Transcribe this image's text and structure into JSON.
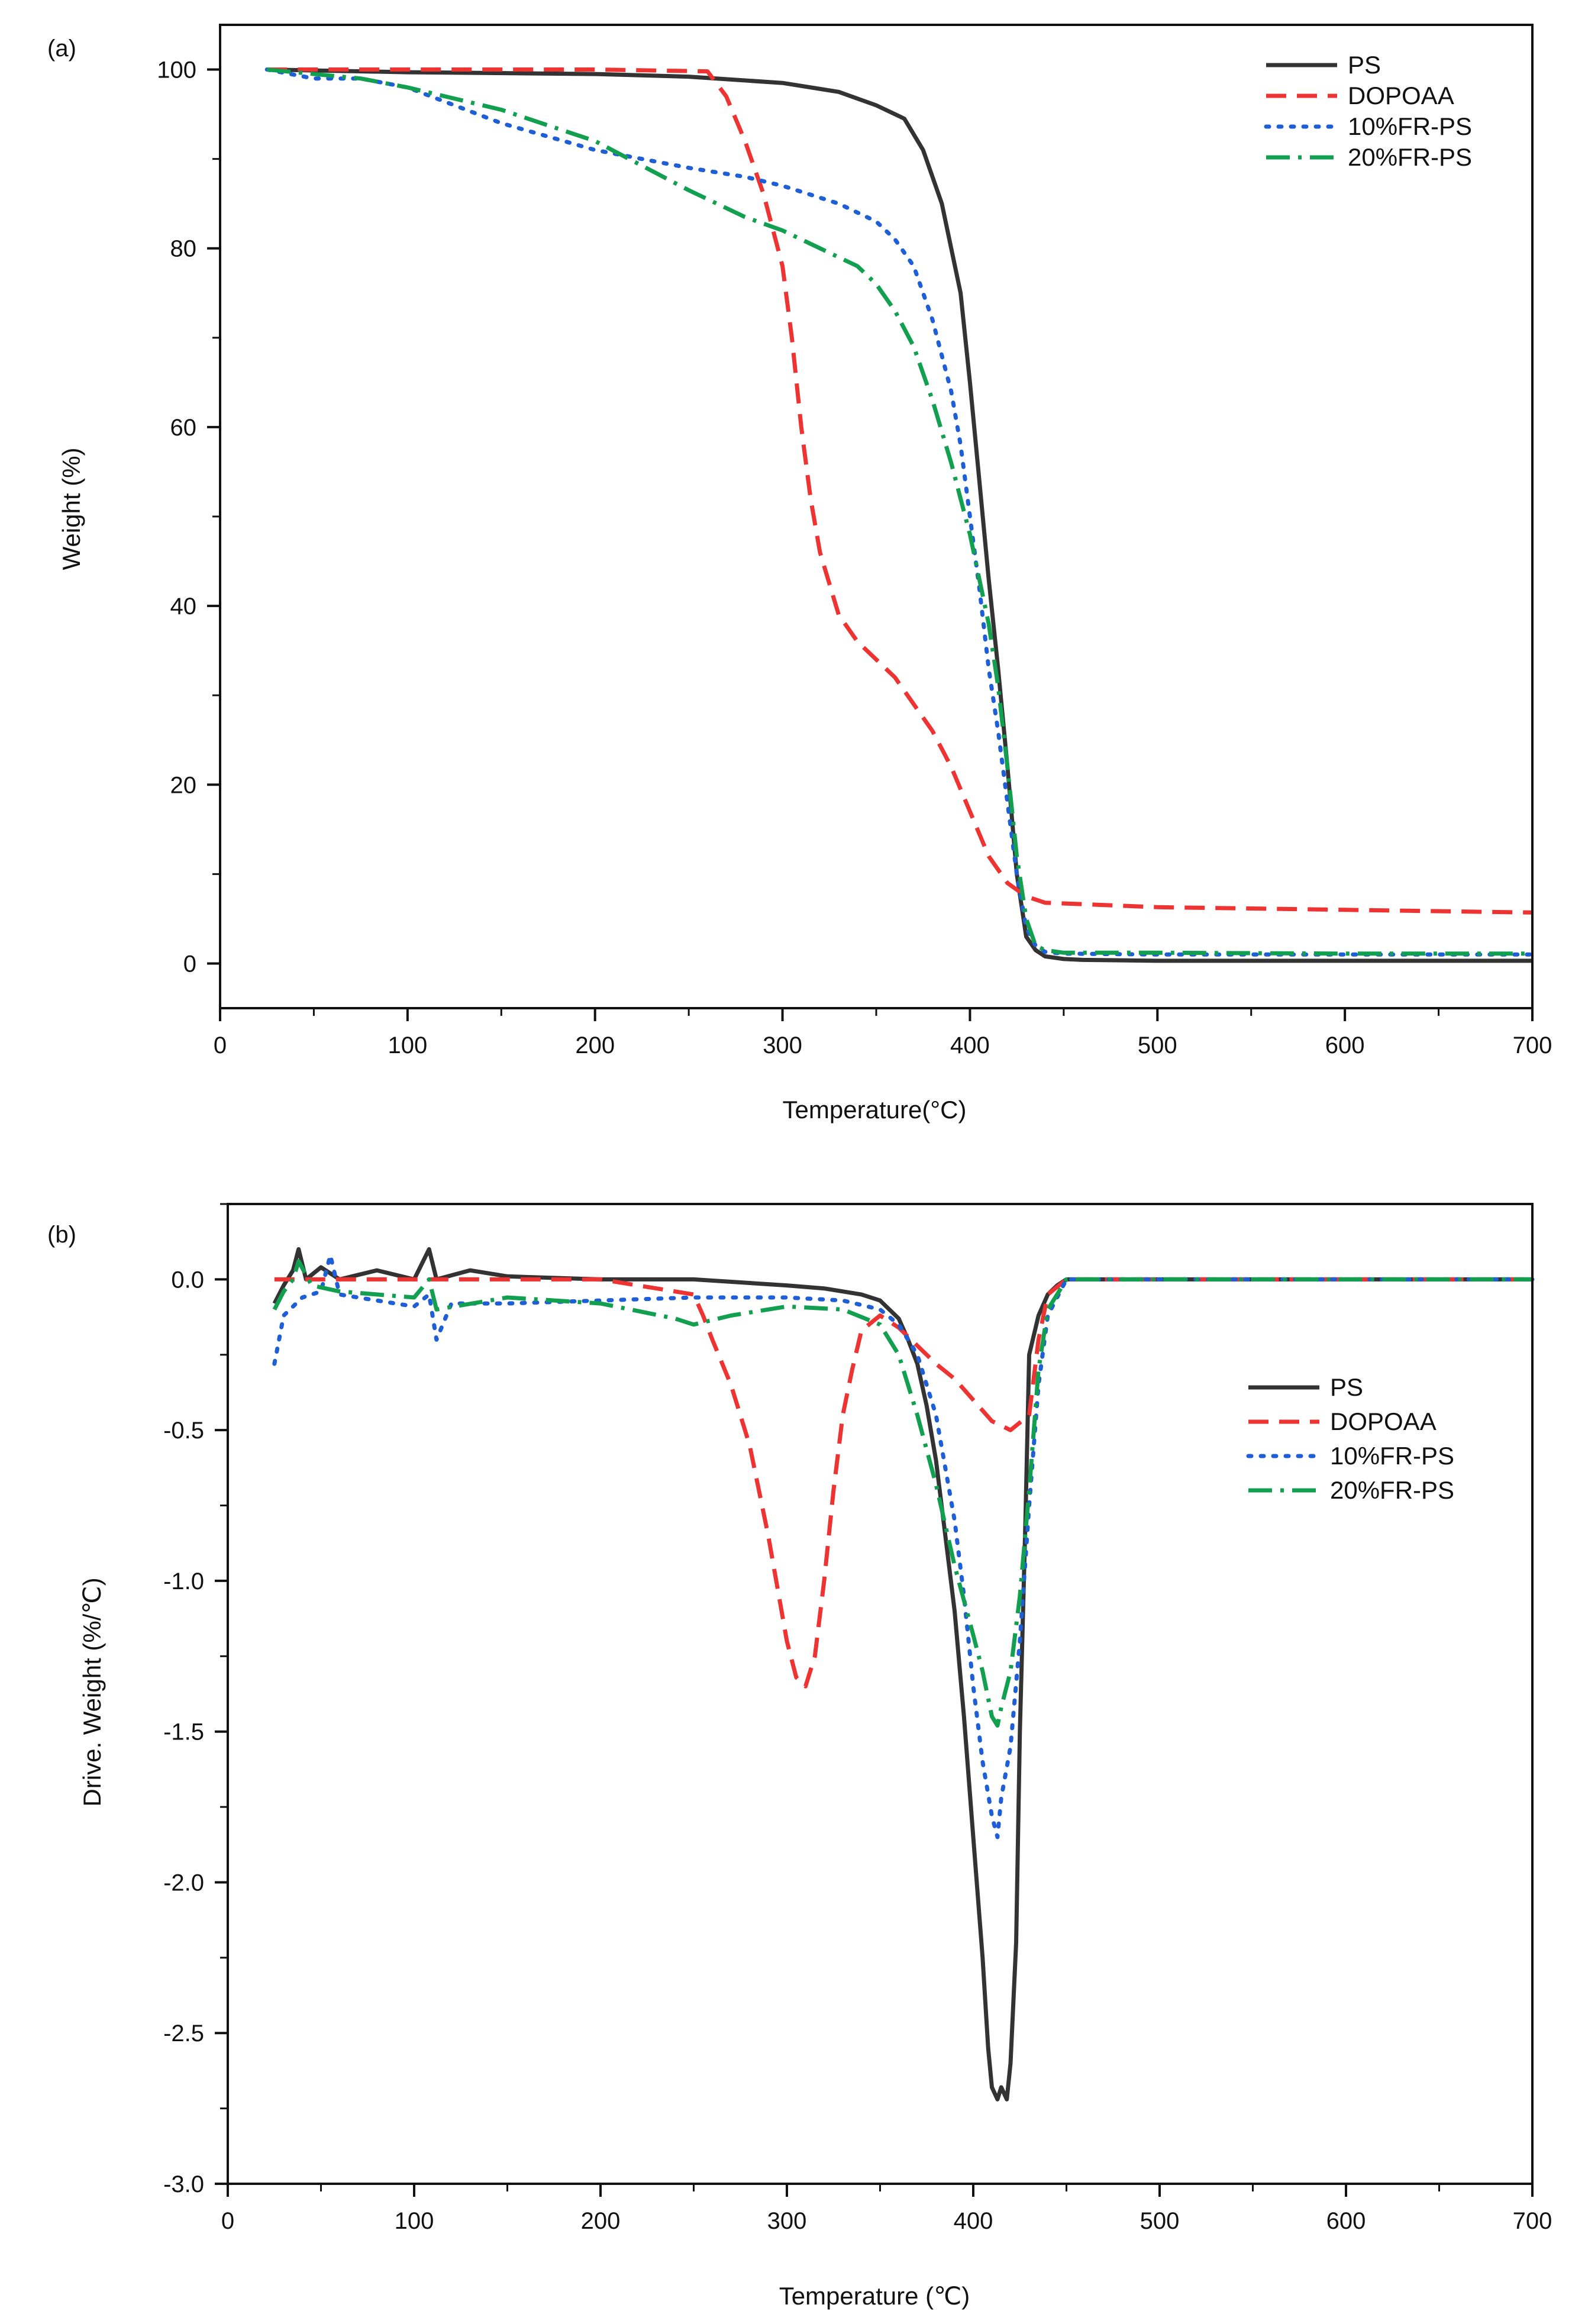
{
  "colors": {
    "PS": "#333333",
    "DOPOAA": "#ee3333",
    "10%FR-PS": "#1f5fd6",
    "20%FR-PS": "#12a050"
  },
  "chart_data": [
    {
      "panel": "(a)",
      "type": "line",
      "xlabel": "Temperature(°C)",
      "ylabel": "Weight (%)",
      "xlim": [
        0,
        700
      ],
      "ylim": [
        -5,
        105
      ],
      "xticks": [
        "0",
        "100",
        "200",
        "300",
        "400",
        "500",
        "600",
        "700"
      ],
      "yticks": [
        "0",
        "20",
        "40",
        "60",
        "80",
        "100"
      ],
      "legend_position": "top-right",
      "series": [
        {
          "name": "PS",
          "style": "solid",
          "x": [
            25,
            100,
            200,
            250,
            300,
            330,
            350,
            365,
            375,
            385,
            395,
            400,
            405,
            410,
            415,
            420,
            425,
            430,
            435,
            440,
            450,
            460,
            500,
            600,
            700
          ],
          "y": [
            100,
            99.7,
            99.5,
            99.2,
            98.5,
            97.5,
            96,
            94.5,
            91,
            85,
            75,
            65,
            54,
            43,
            33,
            22,
            10,
            3,
            1.5,
            0.8,
            0.5,
            0.4,
            0.3,
            0.3,
            0.3
          ]
        },
        {
          "name": "DOPOAA",
          "style": "dashed",
          "x": [
            25,
            100,
            200,
            260,
            270,
            280,
            290,
            300,
            305,
            310,
            315,
            320,
            330,
            340,
            350,
            360,
            370,
            380,
            390,
            400,
            410,
            420,
            430,
            440,
            500,
            600,
            700
          ],
          "y": [
            100,
            100,
            100,
            99.8,
            97,
            92,
            86,
            78,
            70,
            60,
            52,
            46,
            39,
            36,
            34,
            32,
            29,
            26,
            22,
            17,
            12,
            9,
            7.5,
            6.8,
            6.3,
            6,
            5.7
          ]
        },
        {
          "name": "10%FR-PS",
          "style": "dotted",
          "x": [
            25,
            50,
            75,
            100,
            150,
            200,
            250,
            280,
            300,
            330,
            350,
            360,
            370,
            380,
            390,
            395,
            400,
            405,
            410,
            415,
            420,
            425,
            430,
            435,
            440,
            450,
            500,
            600,
            700
          ],
          "y": [
            100,
            99,
            99,
            98,
            94,
            91,
            89,
            88,
            87,
            85,
            83,
            81,
            78,
            72,
            64,
            58,
            50,
            42,
            33,
            26,
            18,
            10,
            4,
            2,
            1.3,
            1.1,
            1.0,
            1.0,
            1.0
          ]
        },
        {
          "name": "20%FR-PS",
          "style": "dashdot",
          "x": [
            25,
            75,
            100,
            150,
            200,
            250,
            280,
            300,
            320,
            340,
            350,
            360,
            370,
            380,
            390,
            400,
            410,
            415,
            420,
            425,
            430,
            435,
            440,
            450,
            500,
            600,
            700
          ],
          "y": [
            100,
            99,
            98,
            95.5,
            92,
            86.5,
            83.5,
            82,
            80,
            78,
            76,
            73,
            69,
            63,
            56,
            48,
            38,
            31,
            22,
            12,
            5,
            2,
            1.5,
            1.2,
            1.2,
            1.1,
            1.1
          ]
        }
      ]
    },
    {
      "panel": "(b)",
      "type": "line",
      "xlabel": "Temperature (℃)",
      "ylabel": "Drive. Weight (%/℃)",
      "xlim": [
        0,
        700
      ],
      "ylim": [
        -3.0,
        0.25
      ],
      "xticks": [
        "0",
        "100",
        "200",
        "300",
        "400",
        "500",
        "600",
        "700"
      ],
      "yticks": [
        "0.0",
        "-0.5",
        "-1.0",
        "-1.5",
        "-2.0",
        "-2.5",
        "-3.0"
      ],
      "legend_position": "middle-right",
      "series": [
        {
          "name": "PS",
          "style": "solid",
          "x": [
            25,
            30,
            35,
            38,
            42,
            50,
            60,
            80,
            100,
            108,
            112,
            130,
            150,
            200,
            250,
            300,
            320,
            340,
            350,
            360,
            365,
            370,
            375,
            380,
            385,
            390,
            395,
            400,
            405,
            408,
            410,
            413,
            415,
            418,
            420,
            423,
            425,
            428,
            430,
            435,
            440,
            445,
            450,
            460,
            500,
            600,
            700
          ],
          "y": [
            -0.08,
            -0.02,
            0.03,
            0.1,
            0.0,
            0.04,
            0.0,
            0.03,
            0.0,
            0.1,
            0.0,
            0.03,
            0.01,
            0.0,
            0.0,
            -0.02,
            -0.03,
            -0.05,
            -0.07,
            -0.13,
            -0.2,
            -0.28,
            -0.42,
            -0.6,
            -0.85,
            -1.1,
            -1.45,
            -1.85,
            -2.25,
            -2.55,
            -2.68,
            -2.72,
            -2.68,
            -2.72,
            -2.6,
            -2.2,
            -1.5,
            -0.8,
            -0.25,
            -0.12,
            -0.05,
            -0.02,
            0.0,
            0.0,
            0.0,
            0.0,
            0.0
          ]
        },
        {
          "name": "DOPOAA",
          "style": "dashed",
          "x": [
            25,
            100,
            200,
            250,
            255,
            260,
            270,
            280,
            290,
            300,
            305,
            310,
            315,
            320,
            325,
            330,
            335,
            340,
            350,
            360,
            370,
            380,
            390,
            400,
            410,
            420,
            430,
            435,
            440,
            450,
            500,
            550,
            600,
            650,
            700
          ],
          "y": [
            0.0,
            0.0,
            0.0,
            -0.05,
            -0.12,
            -0.2,
            -0.35,
            -0.55,
            -0.85,
            -1.2,
            -1.32,
            -1.35,
            -1.25,
            -1.0,
            -0.7,
            -0.45,
            -0.3,
            -0.17,
            -0.12,
            -0.16,
            -0.22,
            -0.28,
            -0.33,
            -0.4,
            -0.47,
            -0.5,
            -0.45,
            -0.2,
            -0.05,
            0.0,
            0.0,
            0.0,
            0.0,
            0.0,
            0.0
          ]
        },
        {
          "name": "10%FR-PS",
          "style": "dotted",
          "x": [
            25,
            30,
            40,
            50,
            55,
            60,
            80,
            100,
            108,
            112,
            120,
            150,
            200,
            250,
            300,
            330,
            350,
            360,
            370,
            380,
            390,
            395,
            400,
            405,
            410,
            413,
            415,
            420,
            425,
            430,
            435,
            440,
            450,
            500,
            600,
            700
          ],
          "y": [
            -0.28,
            -0.12,
            -0.06,
            -0.04,
            0.08,
            -0.05,
            -0.07,
            -0.09,
            -0.05,
            -0.2,
            -0.08,
            -0.08,
            -0.07,
            -0.06,
            -0.06,
            -0.07,
            -0.1,
            -0.15,
            -0.25,
            -0.45,
            -0.8,
            -1.05,
            -1.35,
            -1.6,
            -1.78,
            -1.85,
            -1.72,
            -1.55,
            -1.2,
            -0.75,
            -0.35,
            -0.12,
            0.0,
            0.0,
            0.0,
            0.0
          ]
        },
        {
          "name": "20%FR-PS",
          "style": "dashdot",
          "x": [
            25,
            30,
            35,
            38,
            45,
            60,
            80,
            100,
            108,
            112,
            150,
            200,
            240,
            250,
            270,
            300,
            330,
            350,
            360,
            370,
            380,
            390,
            400,
            405,
            410,
            413,
            415,
            420,
            425,
            430,
            435,
            440,
            450,
            500,
            600,
            700
          ],
          "y": [
            -0.1,
            -0.04,
            0.0,
            0.06,
            -0.02,
            -0.04,
            -0.05,
            -0.06,
            0.0,
            -0.1,
            -0.06,
            -0.08,
            -0.13,
            -0.15,
            -0.12,
            -0.09,
            -0.1,
            -0.15,
            -0.25,
            -0.45,
            -0.68,
            -0.95,
            -1.18,
            -1.3,
            -1.45,
            -1.48,
            -1.42,
            -1.3,
            -1.05,
            -0.7,
            -0.3,
            -0.1,
            0.0,
            0.0,
            0.0,
            0.0
          ]
        }
      ]
    }
  ]
}
